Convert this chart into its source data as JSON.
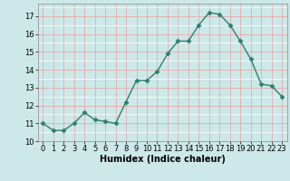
{
  "x": [
    0,
    1,
    2,
    3,
    4,
    5,
    6,
    7,
    8,
    9,
    10,
    11,
    12,
    13,
    14,
    15,
    16,
    17,
    18,
    19,
    20,
    21,
    22,
    23
  ],
  "y": [
    11.0,
    10.6,
    10.6,
    11.0,
    11.6,
    11.2,
    11.1,
    11.0,
    12.2,
    13.4,
    13.4,
    13.9,
    14.9,
    15.6,
    15.6,
    16.5,
    17.2,
    17.1,
    16.5,
    15.6,
    14.6,
    13.2,
    13.1,
    12.5
  ],
  "xlabel": "Humidex (Indice chaleur)",
  "xlim": [
    -0.5,
    23.5
  ],
  "ylim": [
    10.0,
    17.7
  ],
  "yticks": [
    10,
    11,
    12,
    13,
    14,
    15,
    16,
    17
  ],
  "xticks": [
    0,
    1,
    2,
    3,
    4,
    5,
    6,
    7,
    8,
    9,
    10,
    11,
    12,
    13,
    14,
    15,
    16,
    17,
    18,
    19,
    20,
    21,
    22,
    23
  ],
  "line_color": "#2d7f6e",
  "marker": "D",
  "marker_size": 2.5,
  "background_color": "#cde8e8",
  "grid_color": "#ffffff",
  "grid_major_color": "#e8a0a0",
  "label_fontsize": 7,
  "tick_fontsize": 6
}
